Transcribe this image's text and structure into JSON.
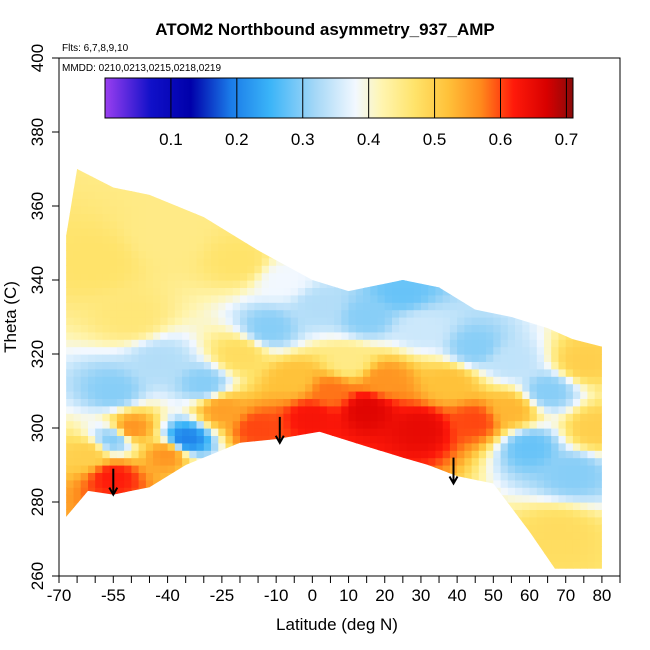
{
  "chart_data": {
    "type": "heatmap",
    "title": "ATOM2 Northbound asymmetry_937_AMP",
    "note_flights": "Flts: 6,7,8,9,10",
    "note_dates": "MMDD: 0210,0213,0215,0218,0219",
    "xlabel": "Latitude (deg N)",
    "ylabel": "Theta (C)",
    "xlim": [
      -70,
      85
    ],
    "ylim": [
      260,
      400
    ],
    "x_ticks": [
      -70,
      -55,
      -40,
      -25,
      -10,
      0,
      10,
      20,
      30,
      40,
      50,
      60,
      70,
      80
    ],
    "x_tick_labels": [
      "-70",
      "-55",
      "-40",
      "-25",
      "-10",
      "0",
      "10",
      "20",
      "30",
      "40",
      "50",
      "60",
      "70",
      "80"
    ],
    "x_minor_ticks": [
      -65,
      -60,
      -50,
      -45,
      -35,
      -30,
      -20,
      -15,
      -5,
      5,
      15,
      25,
      35,
      45,
      55,
      65,
      75,
      85
    ],
    "y_ticks": [
      260,
      280,
      300,
      320,
      340,
      360,
      380,
      400
    ],
    "y_tick_labels": [
      "260",
      "280",
      "300",
      "320",
      "340",
      "360",
      "380",
      "400"
    ],
    "colorbar": {
      "min": 0.0,
      "max": 0.71,
      "ticks": [
        0.1,
        0.2,
        0.3,
        0.4,
        0.5,
        0.6,
        0.7
      ],
      "tick_labels": [
        "0.1",
        "0.2",
        "0.3",
        "0.4",
        "0.5",
        "0.6",
        "0.7"
      ],
      "stops": [
        {
          "value": 0.0,
          "color": "#9a3ff0"
        },
        {
          "value": 0.07,
          "color": "#1010c8"
        },
        {
          "value": 0.13,
          "color": "#0000aa"
        },
        {
          "value": 0.19,
          "color": "#1a7ae8"
        },
        {
          "value": 0.25,
          "color": "#3ab4f8"
        },
        {
          "value": 0.32,
          "color": "#a6d8f7"
        },
        {
          "value": 0.38,
          "color": "#f2f8ff"
        },
        {
          "value": 0.42,
          "color": "#fff5b0"
        },
        {
          "value": 0.47,
          "color": "#ffe36a"
        },
        {
          "value": 0.52,
          "color": "#ffc23a"
        },
        {
          "value": 0.57,
          "color": "#ff8a1c"
        },
        {
          "value": 0.62,
          "color": "#ff1a0a"
        },
        {
          "value": 0.67,
          "color": "#d80000"
        },
        {
          "value": 0.71,
          "color": "#8a0a0a"
        }
      ]
    },
    "region": {
      "upper_boundary": [
        [
          -68,
          352
        ],
        [
          -65,
          370
        ],
        [
          -55,
          365
        ],
        [
          -45,
          363
        ],
        [
          -30,
          357
        ],
        [
          -15,
          348
        ],
        [
          0,
          340
        ],
        [
          10,
          337
        ],
        [
          20,
          339
        ],
        [
          25,
          340
        ],
        [
          35,
          338
        ],
        [
          45,
          332
        ],
        [
          55,
          330
        ],
        [
          65,
          327
        ],
        [
          72,
          324
        ],
        [
          80,
          322
        ]
      ],
      "lower_boundary": [
        [
          -68,
          276
        ],
        [
          -62,
          283
        ],
        [
          -55,
          282
        ],
        [
          -45,
          284
        ],
        [
          -35,
          290
        ],
        [
          -20,
          296
        ],
        [
          -10,
          297
        ],
        [
          2,
          299
        ],
        [
          15,
          295
        ],
        [
          25,
          292
        ],
        [
          32,
          290
        ],
        [
          40,
          287
        ],
        [
          50,
          285
        ],
        [
          60,
          272
        ],
        [
          67,
          262
        ],
        [
          80,
          262
        ]
      ]
    },
    "field_features": [
      {
        "lat": 0,
        "theta": 303,
        "value": 0.63
      },
      {
        "lat": 15,
        "theta": 305,
        "value": 0.66
      },
      {
        "lat": 30,
        "theta": 300,
        "value": 0.65
      },
      {
        "lat": 45,
        "theta": 302,
        "value": 0.6
      },
      {
        "lat": -5,
        "theta": 313,
        "value": 0.52
      },
      {
        "lat": -25,
        "theta": 305,
        "value": 0.55
      },
      {
        "lat": -50,
        "theta": 300,
        "value": 0.56
      },
      {
        "lat": -62,
        "theta": 293,
        "value": 0.5
      },
      {
        "lat": -55,
        "theta": 287,
        "value": 0.62
      },
      {
        "lat": -40,
        "theta": 293,
        "value": 0.56
      },
      {
        "lat": -55,
        "theta": 310,
        "value": 0.3
      },
      {
        "lat": -42,
        "theta": 318,
        "value": 0.33
      },
      {
        "lat": -30,
        "theta": 312,
        "value": 0.3
      },
      {
        "lat": -12,
        "theta": 327,
        "value": 0.3
      },
      {
        "lat": 2,
        "theta": 333,
        "value": 0.33
      },
      {
        "lat": 15,
        "theta": 330,
        "value": 0.3
      },
      {
        "lat": 30,
        "theta": 327,
        "value": 0.35
      },
      {
        "lat": 45,
        "theta": 322,
        "value": 0.3
      },
      {
        "lat": 55,
        "theta": 318,
        "value": 0.34
      },
      {
        "lat": 65,
        "theta": 310,
        "value": 0.3
      },
      {
        "lat": 60,
        "theta": 295,
        "value": 0.28
      },
      {
        "lat": 72,
        "theta": 288,
        "value": 0.3
      },
      {
        "lat": 68,
        "theta": 272,
        "value": 0.48
      },
      {
        "lat": -60,
        "theta": 345,
        "value": 0.47
      },
      {
        "lat": -40,
        "theta": 352,
        "value": 0.45
      },
      {
        "lat": -20,
        "theta": 345,
        "value": 0.47
      },
      {
        "lat": -50,
        "theta": 330,
        "value": 0.46
      },
      {
        "lat": -20,
        "theta": 320,
        "value": 0.48
      },
      {
        "lat": 10,
        "theta": 318,
        "value": 0.45
      },
      {
        "lat": 20,
        "theta": 313,
        "value": 0.56
      },
      {
        "lat": 38,
        "theta": 312,
        "value": 0.52
      },
      {
        "lat": 75,
        "theta": 318,
        "value": 0.5
      },
      {
        "lat": 78,
        "theta": 300,
        "value": 0.5
      },
      {
        "lat": 55,
        "theta": 305,
        "value": 0.53
      },
      {
        "lat": -8,
        "theta": 340,
        "value": 0.38
      },
      {
        "lat": 25,
        "theta": 337,
        "value": 0.28
      },
      {
        "lat": -35,
        "theta": 297,
        "value": 0.2
      },
      {
        "lat": -55,
        "theta": 297,
        "value": 0.3
      },
      {
        "lat": 5,
        "theta": 310,
        "value": 0.58
      },
      {
        "lat": -15,
        "theta": 300,
        "value": 0.6
      }
    ],
    "arrows": [
      {
        "lat": -55,
        "theta_from": 289,
        "theta_to": 282
      },
      {
        "lat": -9,
        "theta_from": 303,
        "theta_to": 296
      },
      {
        "lat": 39,
        "theta_from": 292,
        "theta_to": 285
      }
    ]
  }
}
